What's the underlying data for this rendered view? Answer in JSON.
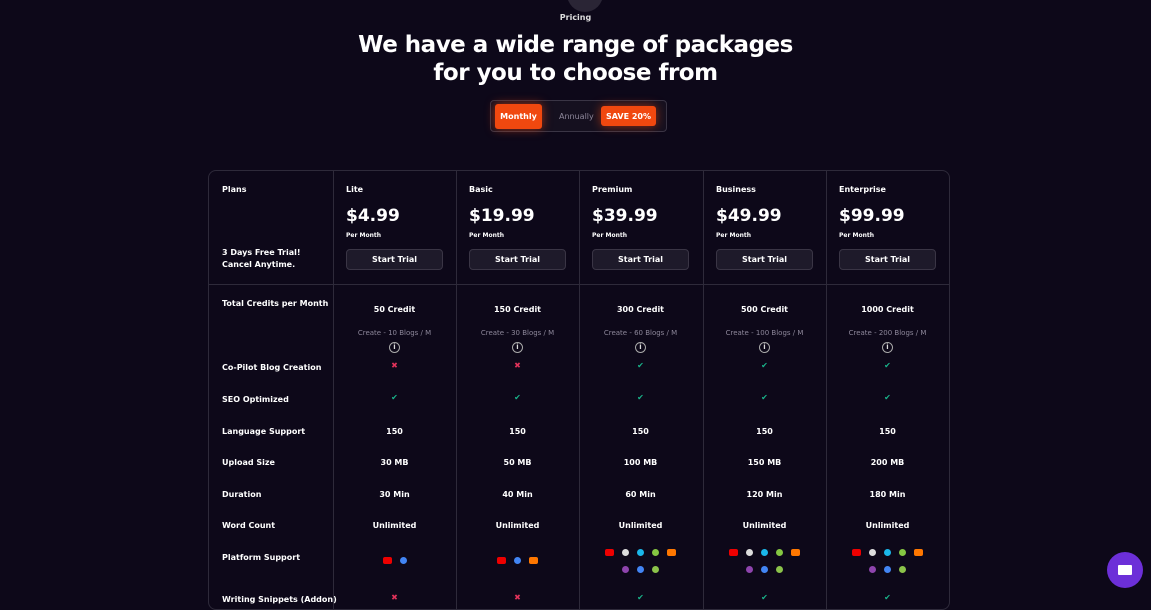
{
  "header": {
    "eyebrow": "Pricing",
    "title_line1": "We have a wide range of packages",
    "title_line2": "for you to choose from"
  },
  "toggle": {
    "monthly": "Monthly",
    "annually": "Annually",
    "save": "SAVE  20%",
    "selected": "Monthly"
  },
  "table": {
    "plans_label": "Plans",
    "trial_note_1": "3 Days Free Trial!",
    "trial_note_2": "Cancel Anytime.",
    "plans": [
      {
        "name": "Lite",
        "price": "$4.99",
        "period": "Per Month",
        "cta": "Start Trial",
        "credits": "50 Credit",
        "blogs": "Create - 10 Blogs / M",
        "copilot": false,
        "seo": true,
        "languages": "150",
        "upload": "30 MB",
        "duration": "30 Min",
        "words": "Unlimited",
        "platforms": [
          "youtube",
          "google-podcasts"
        ],
        "snippets": false
      },
      {
        "name": "Basic",
        "price": "$19.99",
        "period": "Per Month",
        "cta": "Start Trial",
        "credits": "150 Credit",
        "blogs": "Create - 30 Blogs / M",
        "copilot": false,
        "seo": true,
        "languages": "150",
        "upload": "50 MB",
        "duration": "40 Min",
        "words": "Unlimited",
        "platforms": [
          "youtube",
          "google-podcasts",
          "soundcloud"
        ],
        "snippets": false
      },
      {
        "name": "Premium",
        "price": "$39.99",
        "period": "Per Month",
        "cta": "Start Trial",
        "credits": "300 Credit",
        "blogs": "Create - 60 Blogs / M",
        "copilot": true,
        "seo": true,
        "languages": "150",
        "upload": "100 MB",
        "duration": "60 Min",
        "words": "Unlimited",
        "platforms": [
          "youtube",
          "tiktok",
          "vimeo",
          "rumble",
          "soundcloud",
          "apple-podcasts",
          "google-podcasts",
          "rss"
        ],
        "snippets": true
      },
      {
        "name": "Business",
        "price": "$49.99",
        "period": "Per Month",
        "cta": "Start Trial",
        "credits": "500 Credit",
        "blogs": "Create - 100 Blogs / M",
        "copilot": true,
        "seo": true,
        "languages": "150",
        "upload": "150 MB",
        "duration": "120 Min",
        "words": "Unlimited",
        "platforms": [
          "youtube",
          "tiktok",
          "vimeo",
          "rumble",
          "soundcloud",
          "apple-podcasts",
          "google-podcasts",
          "rss"
        ],
        "snippets": true
      },
      {
        "name": "Enterprise",
        "price": "$99.99",
        "period": "Per Month",
        "cta": "Start Trial",
        "credits": "1000 Credit",
        "blogs": "Create - 200 Blogs / M",
        "copilot": true,
        "seo": true,
        "languages": "150",
        "upload": "200 MB",
        "duration": "180 Min",
        "words": "Unlimited",
        "platforms": [
          "youtube",
          "tiktok",
          "vimeo",
          "rumble",
          "soundcloud",
          "apple-podcasts",
          "google-podcasts",
          "rss"
        ],
        "snippets": true
      }
    ],
    "rows": {
      "credits": "Total Credits per Month",
      "copilot": "Co-Pilot Blog Creation",
      "seo": "SEO Optimized",
      "languages": "Language Support",
      "upload": "Upload Size",
      "duration": "Duration",
      "words": "Word Count",
      "platforms": "Platform Support",
      "snippets": "Writing Snippets (Addon)"
    }
  },
  "colors": {
    "accent": "#f0480f",
    "check": "#19b38a",
    "cross": "#e0325a",
    "chat": "#6c2fd8"
  },
  "icons": {
    "info": "info-icon",
    "check": "check-icon",
    "cross": "cross-icon",
    "chat": "chat-icon"
  }
}
